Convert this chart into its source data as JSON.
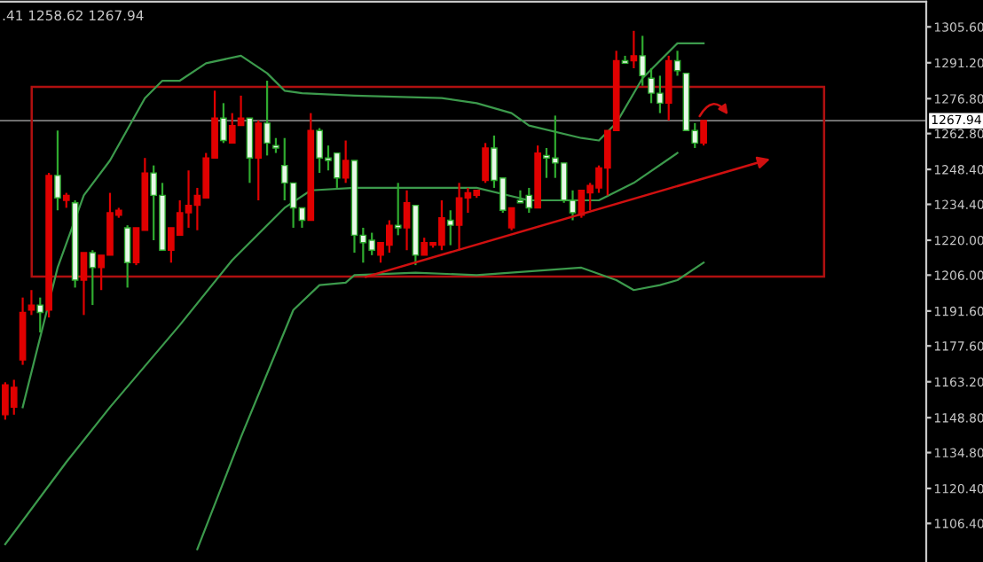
{
  "chart_data": {
    "type": "candlestick",
    "categories": [
      null,
      null,
      null,
      null,
      null,
      null,
      null,
      null,
      null,
      null,
      null,
      null,
      null,
      null,
      null,
      null,
      null,
      null,
      null,
      null,
      null,
      null,
      null,
      null,
      null,
      null,
      null,
      null,
      null,
      null,
      null,
      null,
      null,
      null,
      null,
      null,
      null,
      null,
      null,
      null,
      null,
      null,
      null,
      null,
      null,
      null,
      null,
      null,
      null,
      null,
      null,
      null,
      null,
      null,
      null,
      null,
      null,
      null,
      null,
      null,
      null,
      null,
      null,
      null,
      null,
      null,
      null,
      null,
      null,
      null,
      null,
      null,
      null,
      null,
      null,
      null,
      null,
      null,
      null,
      null,
      null,
      null,
      null,
      null,
      null,
      null,
      null,
      null,
      null,
      null,
      null,
      null,
      null,
      null,
      null,
      null,
      null,
      null,
      null,
      null,
      null,
      null,
      null,
      null,
      null,
      null
    ],
    "ohlc": [
      [
        1150,
        1163,
        1148,
        1162
      ],
      [
        1153,
        1164,
        1150,
        1161
      ],
      [
        1172,
        1197,
        1170,
        1191
      ],
      [
        1192,
        1200,
        1190,
        1194
      ],
      [
        1194,
        1197,
        1183,
        1191
      ],
      [
        1192,
        1247,
        1189,
        1246
      ],
      [
        1246,
        1264,
        1232,
        1237
      ],
      [
        1236,
        1239,
        1233,
        1238
      ],
      [
        1235,
        1236,
        1201,
        1204
      ],
      [
        1204,
        1215,
        1190,
        1215
      ],
      [
        1215,
        1216,
        1194,
        1209
      ],
      [
        1209,
        1214,
        1200,
        1214
      ],
      [
        1214,
        1239,
        1214,
        1231
      ],
      [
        1230,
        1233,
        1229,
        1232
      ],
      [
        1225,
        1226,
        1201,
        1211
      ],
      [
        1211,
        1225,
        1210,
        1225
      ],
      [
        1224,
        1253,
        1224,
        1247
      ],
      [
        1247,
        1250,
        1220,
        1238
      ],
      [
        1238,
        1243,
        1216,
        1216
      ],
      [
        1216,
        1225,
        1211,
        1225
      ],
      [
        1222,
        1236,
        1222,
        1231
      ],
      [
        1231,
        1248,
        1225,
        1234
      ],
      [
        1234,
        1241,
        1224,
        1238
      ],
      [
        1237,
        1255,
        1237,
        1253
      ],
      [
        1253,
        1280,
        1253,
        1269
      ],
      [
        1269,
        1275,
        1259,
        1260
      ],
      [
        1259,
        1271,
        1259,
        1266
      ],
      [
        1266,
        1278,
        1266,
        1269
      ],
      [
        1269,
        1269,
        1243,
        1253
      ],
      [
        1253,
        1268,
        1236,
        1267
      ],
      [
        1267,
        1284,
        1254,
        1259
      ],
      [
        1258,
        1261,
        1255,
        1257
      ],
      [
        1250,
        1261,
        1236,
        1243
      ],
      [
        1243,
        1243,
        1225,
        1233
      ],
      [
        1233,
        1233,
        1225,
        1228
      ],
      [
        1228,
        1271,
        1228,
        1264
      ],
      [
        1264,
        1265,
        1247,
        1253
      ],
      [
        1253,
        1258,
        1248,
        1252
      ],
      [
        1255,
        1255,
        1241,
        1245
      ],
      [
        1245,
        1260,
        1243,
        1252
      ],
      [
        1252,
        1252,
        1215,
        1222
      ],
      [
        1222,
        1225,
        1211,
        1219
      ],
      [
        1220,
        1223,
        1214,
        1216
      ],
      [
        1214,
        1219,
        1211,
        1219
      ],
      [
        1218,
        1228,
        1215,
        1226
      ],
      [
        1226,
        1243,
        1222,
        1225
      ],
      [
        1225,
        1240,
        1216,
        1235
      ],
      [
        1234,
        1234,
        1210,
        1214
      ],
      [
        1214,
        1221,
        1214,
        1219
      ],
      [
        1218,
        1219,
        1217,
        1219
      ],
      [
        1218,
        1236,
        1216,
        1229
      ],
      [
        1228,
        1232,
        1218,
        1226
      ],
      [
        1226,
        1243,
        1216,
        1237
      ],
      [
        1237,
        1241,
        1231,
        1239
      ],
      [
        1238,
        1240,
        1237,
        1240
      ],
      [
        1244,
        1259,
        1243,
        1257
      ],
      [
        1257,
        1262,
        1241,
        1244
      ],
      [
        1245,
        1245,
        1231,
        1232
      ],
      [
        1225,
        1233,
        1224,
        1233
      ],
      [
        1236,
        1240,
        1235,
        1235
      ],
      [
        1238,
        1241,
        1231,
        1233
      ],
      [
        1233,
        1258,
        1233,
        1255
      ],
      [
        1254,
        1257,
        1245,
        1253
      ],
      [
        1253,
        1270,
        1245,
        1251
      ],
      [
        1251,
        1251,
        1235,
        1236
      ],
      [
        1236,
        1240,
        1228,
        1231
      ],
      [
        1230,
        1240,
        1229,
        1240
      ],
      [
        1239,
        1243,
        1232,
        1242
      ],
      [
        1241,
        1250,
        1239,
        1249
      ],
      [
        1249,
        1264,
        1238,
        1264
      ],
      [
        1264,
        1296,
        1264,
        1292
      ],
      [
        1292,
        1294,
        1291,
        1291
      ],
      [
        1292,
        1304,
        1289,
        1294
      ],
      [
        1294,
        1302,
        1282,
        1286
      ],
      [
        1285,
        1289,
        1275,
        1279
      ],
      [
        1279,
        1286,
        1271,
        1275
      ],
      [
        1275,
        1294,
        1268,
        1292
      ],
      [
        1292,
        1296,
        1286,
        1288
      ],
      [
        1287,
        1287,
        1264,
        1264
      ],
      [
        1264,
        1267,
        1257,
        1259
      ],
      [
        1259,
        1268,
        1258,
        1268
      ],
      null,
      null,
      null,
      null,
      null,
      null,
      null,
      null,
      null,
      null,
      null,
      null,
      null,
      null,
      null,
      null,
      null,
      null,
      null,
      null,
      null,
      null,
      null,
      null,
      null
    ],
    "colors": [
      "#e00000",
      "#e00000",
      "#e00000",
      "#e00000",
      "#e8f8e8",
      "#e00000",
      "#e8f8e8",
      "#e00000",
      "#e8f8e8",
      "#e00000",
      "#e8f8e8",
      "#e00000",
      "#e00000",
      "#e00000",
      "#e8f8e8",
      "#e00000",
      "#e00000",
      "#e8f8e8",
      "#e8f8e8",
      "#e00000",
      "#e00000",
      "#e00000",
      "#e00000",
      "#e00000",
      "#e00000",
      "#e8f8e8",
      "#e00000",
      "#e00000",
      "#e8f8e8",
      "#e00000",
      "#e8f8e8",
      "#e8f8e8",
      "#e8f8e8",
      "#e8f8e8",
      "#e8f8e8",
      "#e00000",
      "#e8f8e8",
      "#e8f8e8",
      "#e8f8e8",
      "#e00000",
      "#e8f8e8",
      "#e8f8e8",
      "#e8f8e8",
      "#e00000",
      "#e00000",
      "#e8f8e8",
      "#e00000",
      "#e8f8e8",
      "#e00000",
      "#e00000",
      "#e00000",
      "#e8f8e8",
      "#e00000",
      "#e00000",
      "#e00000",
      "#e00000",
      "#e8f8e8",
      "#e8f8e8",
      "#e00000",
      "#e8f8e8",
      "#e8f8e8",
      "#e00000",
      "#e8f8e8",
      "#e8f8e8",
      "#e8f8e8",
      "#e8f8e8",
      "#e00000",
      "#e00000",
      "#e00000",
      "#e00000",
      "#e00000",
      "#e8f8e8",
      "#e00000",
      "#e8f8e8",
      "#e8f8e8",
      "#e8f8e8",
      "#e00000",
      "#e8f8e8",
      "#e8f8e8",
      "#e8f8e8",
      "#e00000",
      null,
      null,
      null,
      null,
      null,
      null,
      null,
      null,
      null,
      null,
      null,
      null,
      null,
      null,
      null,
      null,
      null,
      null,
      null,
      null,
      null,
      null,
      null,
      null,
      null
    ],
    "series": [
      {
        "type": "line",
        "color": "#3c9a4c",
        "values": [
          null,
          null,
          1153,
          null,
          null,
          null,
          1209,
          null,
          null,
          1238,
          null,
          null,
          1252,
          null,
          null,
          null,
          1277,
          null,
          1284,
          null,
          1284,
          null,
          null,
          1291,
          null,
          null,
          null,
          1294,
          null,
          null,
          1287,
          null,
          1280,
          null,
          1279,
          null,
          null,
          null,
          null,
          null,
          1278,
          null,
          null,
          null,
          null,
          null,
          null,
          null,
          null,
          null,
          1277,
          null,
          null,
          null,
          1275,
          null,
          null,
          null,
          1271,
          null,
          1266,
          null,
          null,
          null,
          null,
          null,
          1261,
          null,
          1260,
          null,
          1267,
          null,
          null,
          1285,
          null,
          null,
          null,
          1299,
          null,
          null,
          1299,
          null,
          null,
          null,
          null,
          null,
          null,
          null,
          null,
          null,
          null,
          null,
          null,
          null,
          null,
          null,
          null,
          null,
          null,
          null,
          null,
          null,
          null,
          null,
          null,
          null
        ]
      },
      {
        "type": "line",
        "color": "#3c9a4c",
        "values": [
          1098,
          null,
          null,
          null,
          null,
          null,
          null,
          1131,
          null,
          null,
          null,
          null,
          1153,
          null,
          null,
          null,
          null,
          null,
          null,
          null,
          1186,
          null,
          null,
          null,
          null,
          null,
          1212,
          null,
          null,
          null,
          null,
          null,
          1233,
          null,
          null,
          1240,
          null,
          null,
          null,
          null,
          1241,
          null,
          null,
          null,
          null,
          null,
          null,
          null,
          null,
          null,
          null,
          null,
          null,
          null,
          1241,
          null,
          null,
          null,
          null,
          null,
          1236,
          null,
          null,
          null,
          null,
          null,
          null,
          null,
          1236,
          null,
          null,
          null,
          1243,
          null,
          null,
          null,
          null,
          1255,
          null,
          null,
          null,
          null,
          null,
          null,
          null,
          null,
          null,
          null,
          null,
          null,
          null,
          null,
          null,
          null,
          null,
          null,
          null,
          null,
          null,
          null,
          null,
          null,
          null,
          null,
          null,
          null
        ]
      },
      {
        "type": "line",
        "color": "#3c9a4c",
        "values": [
          null,
          null,
          null,
          null,
          null,
          null,
          null,
          null,
          null,
          null,
          null,
          null,
          null,
          null,
          null,
          null,
          null,
          null,
          null,
          null,
          null,
          null,
          1096,
          null,
          null,
          null,
          null,
          1141,
          null,
          null,
          null,
          null,
          null,
          1192,
          null,
          null,
          1202,
          null,
          null,
          1203,
          1206,
          null,
          null,
          null,
          null,
          null,
          null,
          1207,
          null,
          null,
          null,
          null,
          null,
          null,
          1206,
          null,
          null,
          null,
          null,
          null,
          null,
          null,
          null,
          null,
          null,
          null,
          1209,
          null,
          null,
          null,
          1204,
          null,
          1200,
          null,
          null,
          1202,
          null,
          1204,
          null,
          null,
          1211,
          null,
          null,
          null,
          null,
          null,
          null,
          null,
          null,
          null,
          null,
          null,
          null,
          null,
          null,
          null,
          null,
          null,
          null,
          null,
          null,
          null,
          null,
          null,
          null,
          null
        ]
      }
    ],
    "ylim": [
      1090.9,
      1315.7
    ],
    "yticks": [
      {
        "value": 1305.6,
        "label": "1305.60"
      },
      {
        "value": 1291.2,
        "label": "1291.20"
      },
      {
        "value": 1276.8,
        "label": "1276.80"
      },
      {
        "value": 1262.8,
        "label": "1262.80"
      },
      {
        "value": 1248.4,
        "label": "1248.40"
      },
      {
        "value": 1234.4,
        "label": "1234.40"
      },
      {
        "value": 1220.0,
        "label": "1220.00"
      },
      {
        "value": 1206.0,
        "label": "1206.00"
      },
      {
        "value": 1191.6,
        "label": "1191.60"
      },
      {
        "value": 1177.6,
        "label": "1177.60"
      },
      {
        "value": 1163.2,
        "label": "1163.20"
      },
      {
        "value": 1148.8,
        "label": "1148.80"
      },
      {
        "value": 1134.8,
        "label": "1134.80"
      },
      {
        "value": 1120.4,
        "label": "1120.40"
      },
      {
        "value": 1106.4,
        "label": "1106.40"
      }
    ],
    "ref_lines": [
      {
        "axis": "y",
        "value": 1267.94,
        "label": "1267.94",
        "color": "#808080"
      }
    ],
    "annotations": [
      ".41 1258.62 1267.94"
    ],
    "tick_labels": "y",
    "grid": false
  }
}
